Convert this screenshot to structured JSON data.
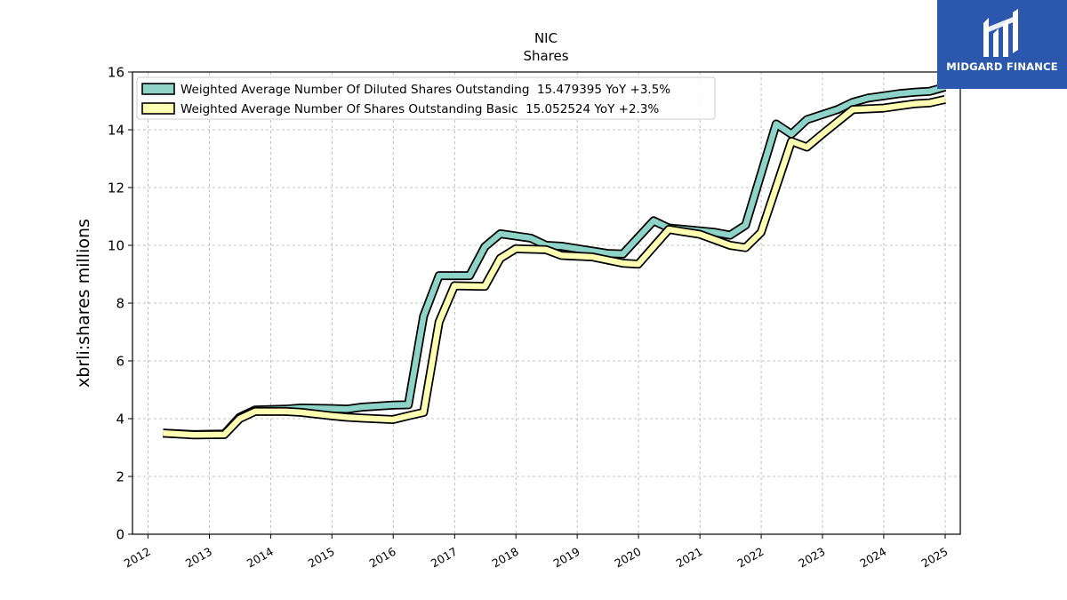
{
  "chart_data": {
    "type": "line",
    "title": "NIC",
    "subtitle": "Shares",
    "ylabel": "xbrli:shares millions",
    "xlabel": "",
    "ylim": [
      0,
      16
    ],
    "yticks": [
      0,
      2,
      4,
      6,
      8,
      10,
      12,
      14,
      16
    ],
    "xlim": [
      "2011-10-01",
      "2025-04-01"
    ],
    "xticks": [
      "2012",
      "2013",
      "2014",
      "2015",
      "2016",
      "2017",
      "2018",
      "2019",
      "2020",
      "2021",
      "2022",
      "2023",
      "2024",
      "2025"
    ],
    "grid": true,
    "legend_position": "top-left",
    "series": [
      {
        "name": "Weighted Average Number Of Diluted Shares Outstanding  15.479395 YoY +3.5%",
        "color": "#8dd3c7",
        "points": [
          [
            "2012-03-31",
            3.5
          ],
          [
            "2012-09-30",
            3.45
          ],
          [
            "2013-03-31",
            3.47
          ],
          [
            "2013-06-30",
            4.05
          ],
          [
            "2013-09-30",
            4.3
          ],
          [
            "2014-03-31",
            4.33
          ],
          [
            "2014-06-30",
            4.37
          ],
          [
            "2014-12-31",
            4.35
          ],
          [
            "2015-03-31",
            4.33
          ],
          [
            "2015-06-30",
            4.4
          ],
          [
            "2015-12-31",
            4.47
          ],
          [
            "2016-03-31",
            4.48
          ],
          [
            "2016-06-30",
            7.55
          ],
          [
            "2016-09-30",
            8.95
          ],
          [
            "2017-03-31",
            8.95
          ],
          [
            "2017-06-30",
            9.95
          ],
          [
            "2017-09-30",
            10.4
          ],
          [
            "2018-03-31",
            10.25
          ],
          [
            "2018-06-30",
            10.0
          ],
          [
            "2018-09-30",
            9.97
          ],
          [
            "2019-06-30",
            9.72
          ],
          [
            "2019-09-30",
            9.7
          ],
          [
            "2020-03-31",
            10.85
          ],
          [
            "2020-06-30",
            10.6
          ],
          [
            "2020-09-30",
            10.55
          ],
          [
            "2021-03-31",
            10.45
          ],
          [
            "2021-06-30",
            10.35
          ],
          [
            "2021-09-30",
            10.7
          ],
          [
            "2022-03-31",
            14.2
          ],
          [
            "2022-06-30",
            13.85
          ],
          [
            "2022-09-30",
            14.35
          ],
          [
            "2023-03-31",
            14.7
          ],
          [
            "2023-06-30",
            14.95
          ],
          [
            "2023-09-30",
            15.1
          ],
          [
            "2024-03-31",
            15.25
          ],
          [
            "2024-06-30",
            15.3
          ],
          [
            "2024-09-30",
            15.33
          ],
          [
            "2024-12-31",
            15.48
          ]
        ]
      },
      {
        "name": "Weighted Average Number Of Shares Outstanding Basic  15.052524 YoY +2.3%",
        "color": "#ffffb3",
        "points": [
          [
            "2012-03-31",
            3.5
          ],
          [
            "2012-09-30",
            3.44
          ],
          [
            "2013-03-31",
            3.45
          ],
          [
            "2013-06-30",
            4.0
          ],
          [
            "2013-09-30",
            4.25
          ],
          [
            "2014-03-31",
            4.25
          ],
          [
            "2014-06-30",
            4.22
          ],
          [
            "2014-12-31",
            4.1
          ],
          [
            "2015-03-31",
            4.05
          ],
          [
            "2015-06-30",
            4.02
          ],
          [
            "2015-12-31",
            3.97
          ],
          [
            "2016-03-31",
            4.1
          ],
          [
            "2016-06-30",
            4.22
          ],
          [
            "2016-09-30",
            7.35
          ],
          [
            "2016-12-31",
            8.6
          ],
          [
            "2017-06-30",
            8.58
          ],
          [
            "2017-09-30",
            9.55
          ],
          [
            "2017-12-31",
            9.88
          ],
          [
            "2018-06-30",
            9.85
          ],
          [
            "2018-09-30",
            9.65
          ],
          [
            "2019-03-31",
            9.6
          ],
          [
            "2019-09-30",
            9.38
          ],
          [
            "2019-12-31",
            9.35
          ],
          [
            "2020-06-30",
            10.55
          ],
          [
            "2020-12-31",
            10.38
          ],
          [
            "2021-06-30",
            10.0
          ],
          [
            "2021-09-30",
            9.92
          ],
          [
            "2021-12-31",
            10.45
          ],
          [
            "2022-06-30",
            13.6
          ],
          [
            "2022-09-30",
            13.4
          ],
          [
            "2022-12-31",
            13.85
          ],
          [
            "2023-06-30",
            14.7
          ],
          [
            "2023-12-31",
            14.75
          ],
          [
            "2024-06-30",
            14.9
          ],
          [
            "2024-09-30",
            14.93
          ],
          [
            "2024-12-31",
            15.05
          ]
        ]
      }
    ]
  },
  "logo": {
    "text": "MIDGARD FINANCE"
  }
}
